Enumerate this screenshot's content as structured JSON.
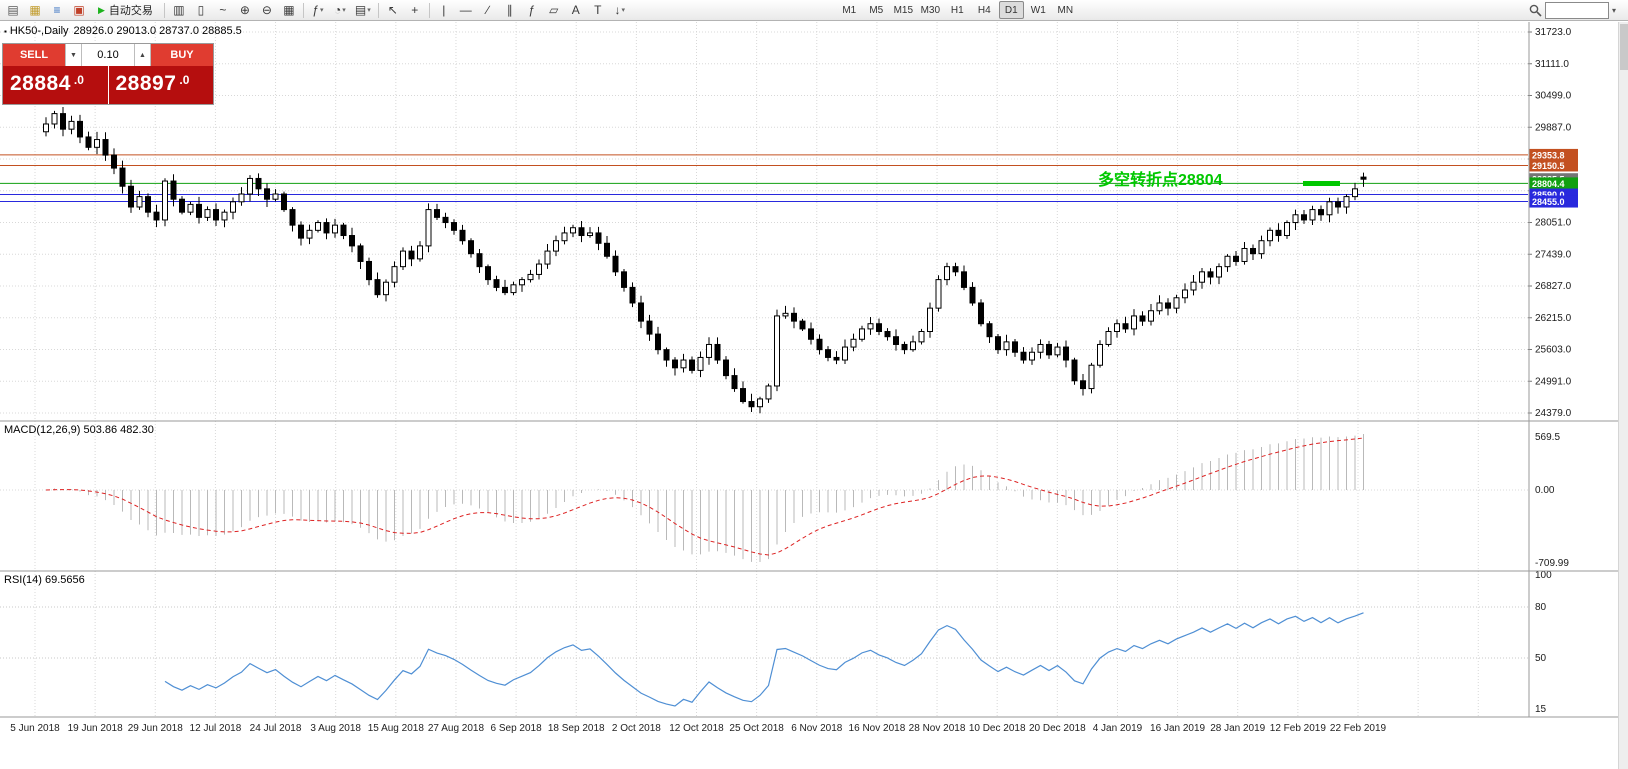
{
  "toolbar": {
    "left_items": [
      {
        "name": "new-order-button",
        "glyph": "▤",
        "color": "#5a5a5a"
      },
      {
        "name": "market-watch-button",
        "glyph": "▦",
        "color": "#c09a28"
      },
      {
        "name": "navigator-button",
        "glyph": "≡",
        "color": "#2f6bbf"
      },
      {
        "name": "terminal-button",
        "glyph": "▣",
        "color": "#c04028"
      }
    ],
    "auto_trading_label": "自动交易",
    "chart_tools": [
      {
        "name": "bar-chart-button",
        "glyph": "▥"
      },
      {
        "name": "candlestick-chart-button",
        "glyph": "▯"
      },
      {
        "name": "line-chart-button",
        "glyph": "~"
      },
      {
        "name": "zoom-in-button",
        "glyph": "⊕"
      },
      {
        "name": "zoom-out-button",
        "glyph": "⊖"
      },
      {
        "name": "tile-windows-button",
        "glyph": "▦"
      }
    ],
    "insert_tools": [
      {
        "name": "indicators-button",
        "glyph": "ƒ",
        "dropdown": true
      },
      {
        "name": "periods-button",
        "glyph": "◔",
        "dropdown": true
      },
      {
        "name": "templates-button",
        "glyph": "▤",
        "dropdown": true
      }
    ],
    "cursor_tools": [
      {
        "name": "cursor-button",
        "glyph": "↖"
      },
      {
        "name": "crosshair-button",
        "glyph": "+"
      }
    ],
    "draw_tools": [
      {
        "name": "vertical-line-button",
        "glyph": "|"
      },
      {
        "name": "horizontal-line-button",
        "glyph": "—"
      },
      {
        "name": "trendline-button",
        "glyph": "∕"
      },
      {
        "name": "channel-button",
        "glyph": "∥"
      },
      {
        "name": "fibonacci-button",
        "glyph": "ƒ"
      },
      {
        "name": "shapes-button",
        "glyph": "▱"
      },
      {
        "name": "text-button",
        "glyph": "A"
      },
      {
        "name": "label-button",
        "glyph": "T"
      },
      {
        "name": "arrow-tools-button",
        "glyph": "↓",
        "dropdown": true
      }
    ],
    "timeframes": [
      "M1",
      "M5",
      "M15",
      "M30",
      "H1",
      "H4",
      "D1",
      "W1",
      "MN"
    ],
    "active_timeframe": "D1",
    "search": {
      "placeholder": ""
    }
  },
  "chart": {
    "title": "HK50-,Daily",
    "ohlc_text": "28926.0 29013.0 28737.0 28885.5"
  },
  "trade_panel": {
    "sell_label": "SELL",
    "buy_label": "BUY",
    "volume": "0.10",
    "sell_price_big": "28884",
    "sell_price_small": ".0",
    "buy_price_big": "28897",
    "buy_price_small": ".0"
  },
  "annotation": {
    "text": "多空转折点28804",
    "color": "#00c800"
  },
  "macd_panel": {
    "text": "MACD(12,26,9) 503.86 482.30",
    "axis_labels": [
      "569.5",
      "0.00",
      "-709.99"
    ]
  },
  "rsi_panel": {
    "text": "RSI(14) 69.5656",
    "axis_labels": [
      "100",
      "80",
      "50",
      "15"
    ],
    "levels": [
      80,
      50
    ]
  },
  "chart_data": {
    "type": "candlestick",
    "symbol": "HK50-",
    "timeframe": "Daily",
    "ohlc_display": {
      "open": 28926.0,
      "high": 29013.0,
      "low": 28737.0,
      "close": 28885.5
    },
    "bid": 28884.0,
    "ask": 28897.0,
    "x_labels": [
      "5 Jun 2018",
      "19 Jun 2018",
      "29 Jun 2018",
      "12 Jul 2018",
      "24 Jul 2018",
      "3 Aug 2018",
      "15 Aug 2018",
      "27 Aug 2018",
      "6 Sep 2018",
      "18 Sep 2018",
      "2 Oct 2018",
      "12 Oct 2018",
      "25 Oct 2018",
      "6 Nov 2018",
      "16 Nov 2018",
      "28 Nov 2018",
      "10 Dec 2018",
      "20 Dec 2018",
      "4 Jan 2019",
      "16 Jan 2019",
      "28 Jan 2019",
      "12 Feb 2019",
      "22 Feb 2019"
    ],
    "closes": [
      29950,
      30150,
      29850,
      30000,
      29700,
      29500,
      29650,
      29350,
      29100,
      28750,
      28350,
      28550,
      28250,
      28100,
      28850,
      28500,
      28250,
      28400,
      28150,
      28300,
      28100,
      28250,
      28450,
      28600,
      28900,
      28700,
      28500,
      28600,
      28300,
      28000,
      27750,
      27900,
      28050,
      27850,
      28000,
      27800,
      27600,
      27300,
      26950,
      26660,
      26900,
      27200,
      27500,
      27350,
      27600,
      28300,
      28150,
      28050,
      27900,
      27700,
      27450,
      27200,
      26950,
      26800,
      26700,
      26850,
      26950,
      27050,
      27250,
      27500,
      27700,
      27850,
      27950,
      27800,
      27850,
      27650,
      27400,
      27100,
      26800,
      26500,
      26150,
      25900,
      25600,
      25400,
      25250,
      25400,
      25200,
      25450,
      25700,
      25400,
      25100,
      24850,
      24600,
      24500,
      24650,
      24900,
      26250,
      26300,
      26150,
      26000,
      25800,
      25600,
      25450,
      25400,
      25650,
      25800,
      26000,
      26100,
      25950,
      25850,
      25700,
      25600,
      25750,
      25950,
      26400,
      26950,
      27200,
      27100,
      26800,
      26500,
      26100,
      25850,
      25600,
      25750,
      25550,
      25400,
      25550,
      25700,
      25500,
      25650,
      25400,
      25000,
      24850,
      25300,
      25700,
      25950,
      26100,
      26000,
      26250,
      26150,
      26350,
      26500,
      26400,
      26600,
      26750,
      26900,
      27100,
      27000,
      27200,
      27400,
      27300,
      27550,
      27450,
      27700,
      27900,
      27800,
      28050,
      28200,
      28100,
      28300,
      28200,
      28450,
      28350,
      28550,
      28700,
      28885.5
    ],
    "price_axis": {
      "labels": [
        "31723.0",
        "31111.0",
        "30499.0",
        "29887.0",
        "29275.0",
        "28663.0",
        "28051.0",
        "27439.0",
        "26827.0",
        "26215.0",
        "25603.0",
        "24991.0",
        "24379.0"
      ],
      "top_value": 31723,
      "bottom_value": 24379
    },
    "hlines": [
      {
        "price": 29353.8,
        "label": "29353.8",
        "color": "#c35020",
        "draw_line": true
      },
      {
        "price": 29150.5,
        "label": "29150.5",
        "color": "#c35020",
        "draw_line": true
      },
      {
        "price": 28885.5,
        "label": "28885.5",
        "color": "#757575",
        "draw_line": false
      },
      {
        "price": 28804.4,
        "label": "28804.4",
        "color": "#10a010",
        "draw_line": true
      },
      {
        "price": 28590.0,
        "label": "28590.0",
        "color": "#2929dd",
        "draw_line": true
      },
      {
        "price": 28455.0,
        "label": "28455.0",
        "color": "#2929dd",
        "draw_line": true
      }
    ],
    "indicators": [
      {
        "type": "macd",
        "params": [
          12,
          26,
          9
        ],
        "readout": [
          503.86,
          482.3
        ],
        "axis": [
          569.5,
          0.0,
          -709.99
        ]
      },
      {
        "type": "rsi",
        "params": [
          14
        ],
        "readout": 69.5656,
        "axis_max": 100,
        "levels": [
          80,
          50
        ]
      }
    ],
    "colors": {
      "bull": "#ffffff",
      "bear": "#000000",
      "wick": "#000000",
      "grid": "#d8d8d8",
      "macd_hist": "#b9b9b9",
      "macd_signal": "#dd2222",
      "rsi_line": "#4f8fd4"
    }
  }
}
